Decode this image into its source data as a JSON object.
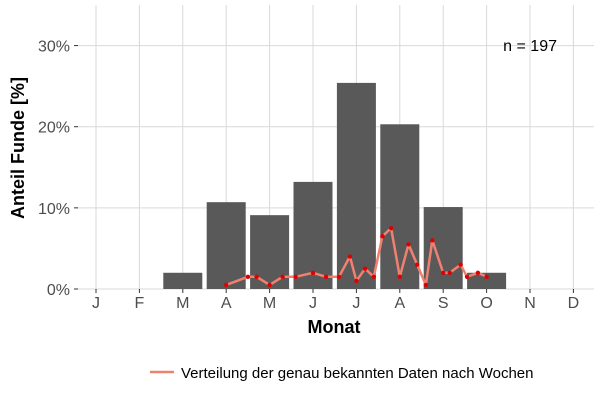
{
  "chart_data": {
    "type": "bar",
    "categories": [
      "J",
      "F",
      "M",
      "A",
      "M",
      "J",
      "J",
      "A",
      "S",
      "O",
      "N",
      "D"
    ],
    "values": [
      0,
      0,
      2.0,
      10.7,
      9.1,
      13.2,
      25.4,
      20.3,
      10.1,
      2.0,
      0,
      0
    ],
    "ylabel": "Anteil Funde [%]",
    "xlabel": "Monat",
    "ylim": [
      0,
      35
    ],
    "yticks": [
      0,
      10,
      20,
      30
    ],
    "ytick_labels": [
      "0%",
      "10%",
      "20%",
      "30%"
    ],
    "annotation": "n = 197",
    "grid": true,
    "bar_color": "#595959",
    "line_series": {
      "name": "Verteilung der genau bekannten Daten nach Wochen",
      "line_color": "#f08070",
      "point_color": "#e00000",
      "x": [
        3.0,
        3.5,
        3.7,
        4.0,
        4.3,
        4.6,
        5.0,
        5.3,
        5.6,
        5.85,
        6.0,
        6.2,
        6.4,
        6.6,
        6.8,
        7.0,
        7.2,
        7.4,
        7.6,
        7.75,
        8.0,
        8.15,
        8.4,
        8.55,
        8.8,
        9.0
      ],
      "y": [
        0.5,
        1.5,
        1.5,
        0.5,
        1.5,
        1.5,
        2.0,
        1.5,
        1.5,
        4.0,
        1.0,
        2.5,
        1.5,
        6.5,
        7.5,
        1.5,
        5.5,
        3.0,
        0.5,
        6.0,
        2.0,
        2.0,
        3.0,
        1.5,
        2.0,
        1.5
      ]
    },
    "legend": {
      "position": "bottom",
      "label": "Verteilung der genau bekannten Daten nach Wochen"
    }
  }
}
